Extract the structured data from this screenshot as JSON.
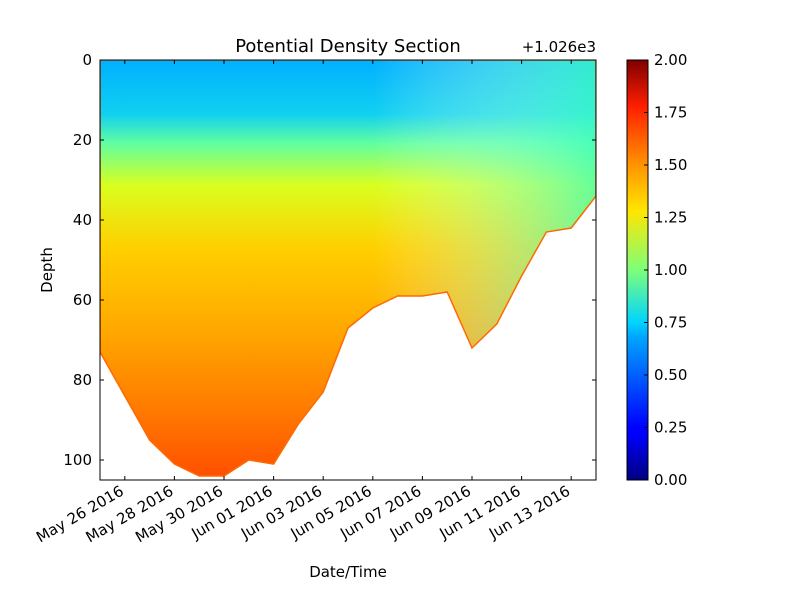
{
  "chart_data": {
    "type": "heatmap",
    "title": "Potential Density Section",
    "xlabel": "Date/Time",
    "ylabel": "Depth",
    "offset_label": "+1.026e3",
    "x_ticks": [
      "May 26 2016",
      "May 28 2016",
      "May 30 2016",
      "Jun 01 2016",
      "Jun 03 2016",
      "Jun 05 2016",
      "Jun 07 2016",
      "Jun 09 2016",
      "Jun 11 2016",
      "Jun 13 2016"
    ],
    "xlim": [
      "2016-05-25",
      "2016-06-14"
    ],
    "y_ticks": [
      "0",
      "20",
      "40",
      "60",
      "80",
      "100"
    ],
    "ylim": [
      0,
      105
    ],
    "y_inverted": true,
    "colorbar": {
      "colormap": "jet",
      "range": [
        0.0,
        2.0
      ],
      "ticks": [
        "0.00",
        "0.25",
        "0.50",
        "0.75",
        "1.00",
        "1.25",
        "1.50",
        "1.75",
        "2.00"
      ]
    },
    "bottom_depth_profile": [
      {
        "date": "2016-05-25",
        "max_depth": 73
      },
      {
        "date": "2016-05-26",
        "max_depth": 84
      },
      {
        "date": "2016-05-27",
        "max_depth": 95
      },
      {
        "date": "2016-05-28",
        "max_depth": 101
      },
      {
        "date": "2016-05-29",
        "max_depth": 104
      },
      {
        "date": "2016-05-30",
        "max_depth": 104
      },
      {
        "date": "2016-05-31",
        "max_depth": 100
      },
      {
        "date": "2016-06-01",
        "max_depth": 101
      },
      {
        "date": "2016-06-02",
        "max_depth": 91
      },
      {
        "date": "2016-06-03",
        "max_depth": 83
      },
      {
        "date": "2016-06-04",
        "max_depth": 67
      },
      {
        "date": "2016-06-05",
        "max_depth": 62
      },
      {
        "date": "2016-06-06",
        "max_depth": 59
      },
      {
        "date": "2016-06-07",
        "max_depth": 59
      },
      {
        "date": "2016-06-08",
        "max_depth": 58
      },
      {
        "date": "2016-06-09",
        "max_depth": 72
      },
      {
        "date": "2016-06-10",
        "max_depth": 66
      },
      {
        "date": "2016-06-11",
        "max_depth": 54
      },
      {
        "date": "2016-06-12",
        "max_depth": 43
      },
      {
        "date": "2016-06-13",
        "max_depth": 42
      },
      {
        "date": "2016-06-14",
        "max_depth": 34
      }
    ]
  }
}
